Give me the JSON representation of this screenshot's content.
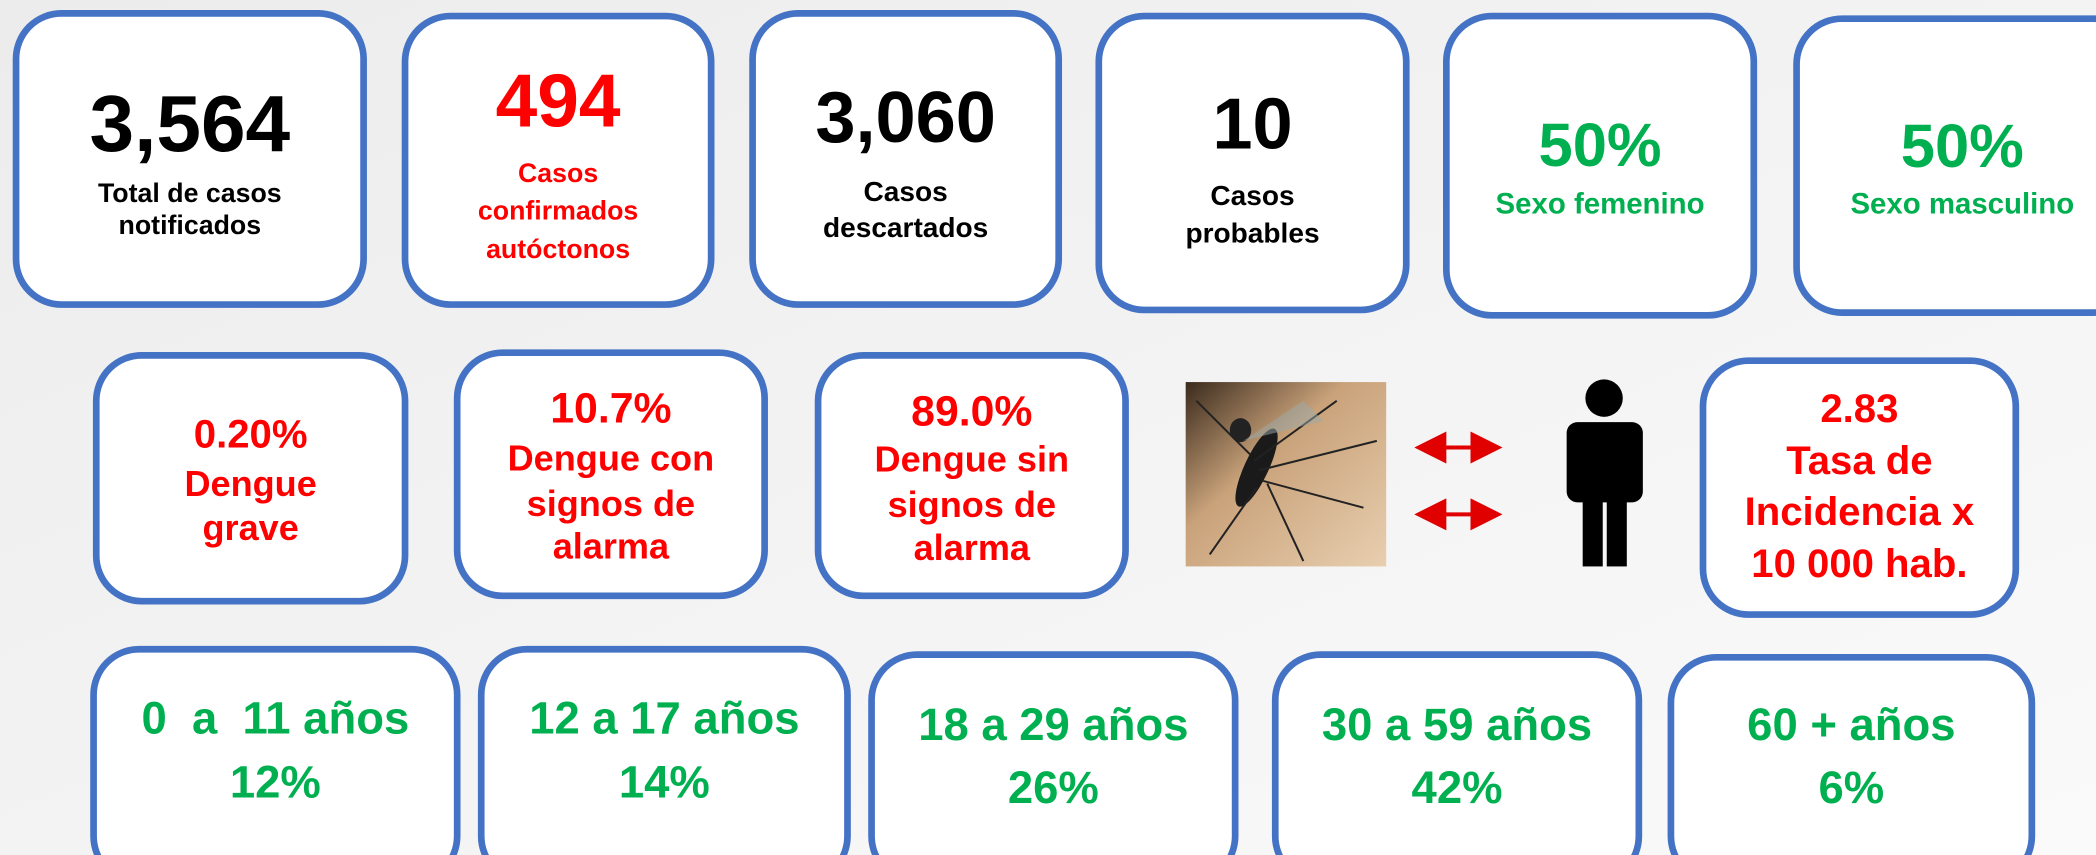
{
  "cards": [
    {
      "lines": [
        "3,564",
        "Total de casos",
        "notificados"
      ],
      "color": "#000000"
    },
    {
      "lines": [
        "494",
        "Casos",
        "confirmados",
        "autóctonos"
      ],
      "color": "#ff0000"
    },
    {
      "lines": [
        "3,060",
        "Casos",
        "descartados"
      ],
      "color": "#000000"
    },
    {
      "lines": [
        "10",
        "Casos",
        "probables"
      ],
      "color": "#000000"
    },
    {
      "lines": [
        "50%",
        "Sexo femenino"
      ],
      "color": "#00b050"
    },
    {
      "lines": [
        "50%",
        "Sexo masculino"
      ],
      "color": "#00b050"
    },
    {
      "lines": [
        "0.20%",
        "Dengue",
        "grave"
      ],
      "color": "#ff0000"
    },
    {
      "lines": [
        "10.7%",
        "Dengue con",
        "signos de",
        "alarma"
      ],
      "color": "#ff0000"
    },
    {
      "lines": [
        "89.0%",
        "Dengue sin",
        "signos de",
        "alarma"
      ],
      "color": "#ff0000"
    },
    {
      "lines": [
        "2.83",
        "Tasa de",
        "Incidencia x",
        "10 000 hab."
      ],
      "color": "#ff0000"
    },
    {
      "lines": [
        "0  a  11 años",
        "12%"
      ],
      "color": "#00b050"
    },
    {
      "lines": [
        "12 a 17 años",
        "14%"
      ],
      "color": "#00b050"
    },
    {
      "lines": [
        "18 a 29 años",
        "26%"
      ],
      "color": "#00b050"
    },
    {
      "lines": [
        "30 a 59 años",
        "42%"
      ],
      "color": "#00b050"
    },
    {
      "lines": [
        "60 + años",
        "6%"
      ],
      "color": "#00b050"
    }
  ]
}
